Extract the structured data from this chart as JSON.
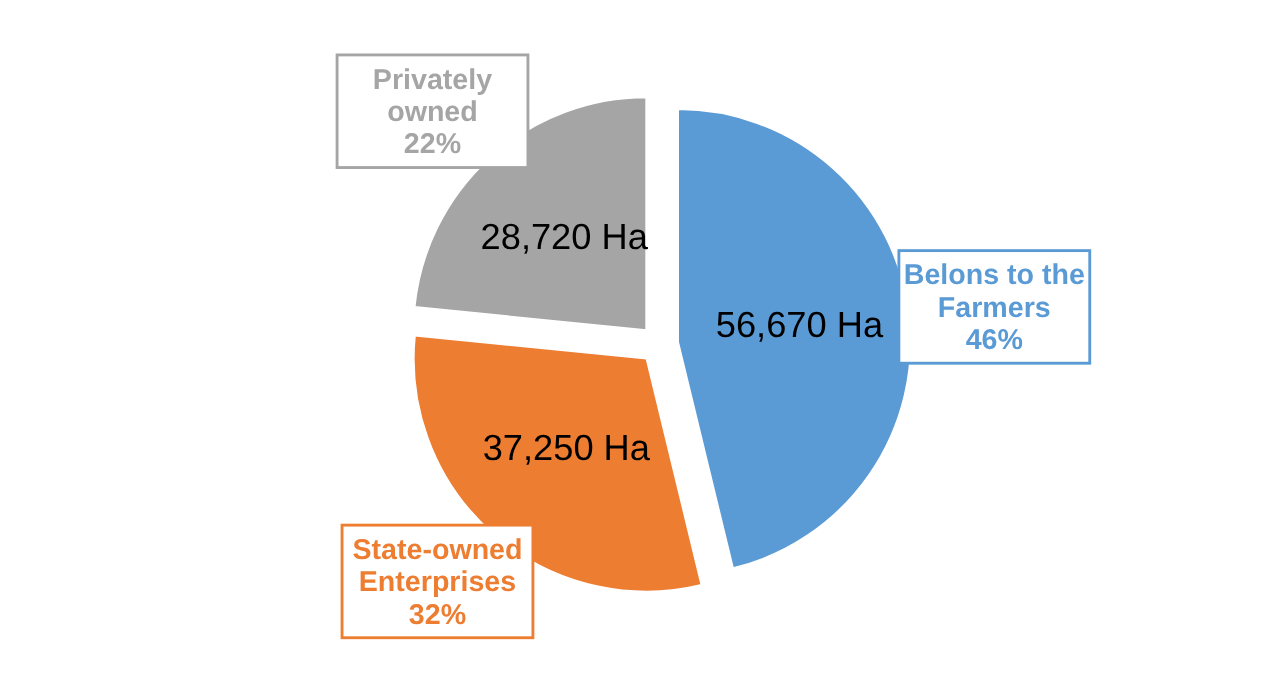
{
  "chart_data": {
    "type": "pie",
    "categories": [
      "Belons to the Farmers",
      "State-owned Enterprises",
      "Privately owned"
    ],
    "values": [
      56670,
      37250,
      28720
    ],
    "colors": [
      "#5b9bd5",
      "#ed7d31",
      "#a5a5a5"
    ],
    "value_labels": [
      "56,670 Ha",
      "37,250 Ha",
      "28,720 Ha"
    ],
    "annotations": [
      "46%",
      "32%",
      "22%"
    ]
  }
}
